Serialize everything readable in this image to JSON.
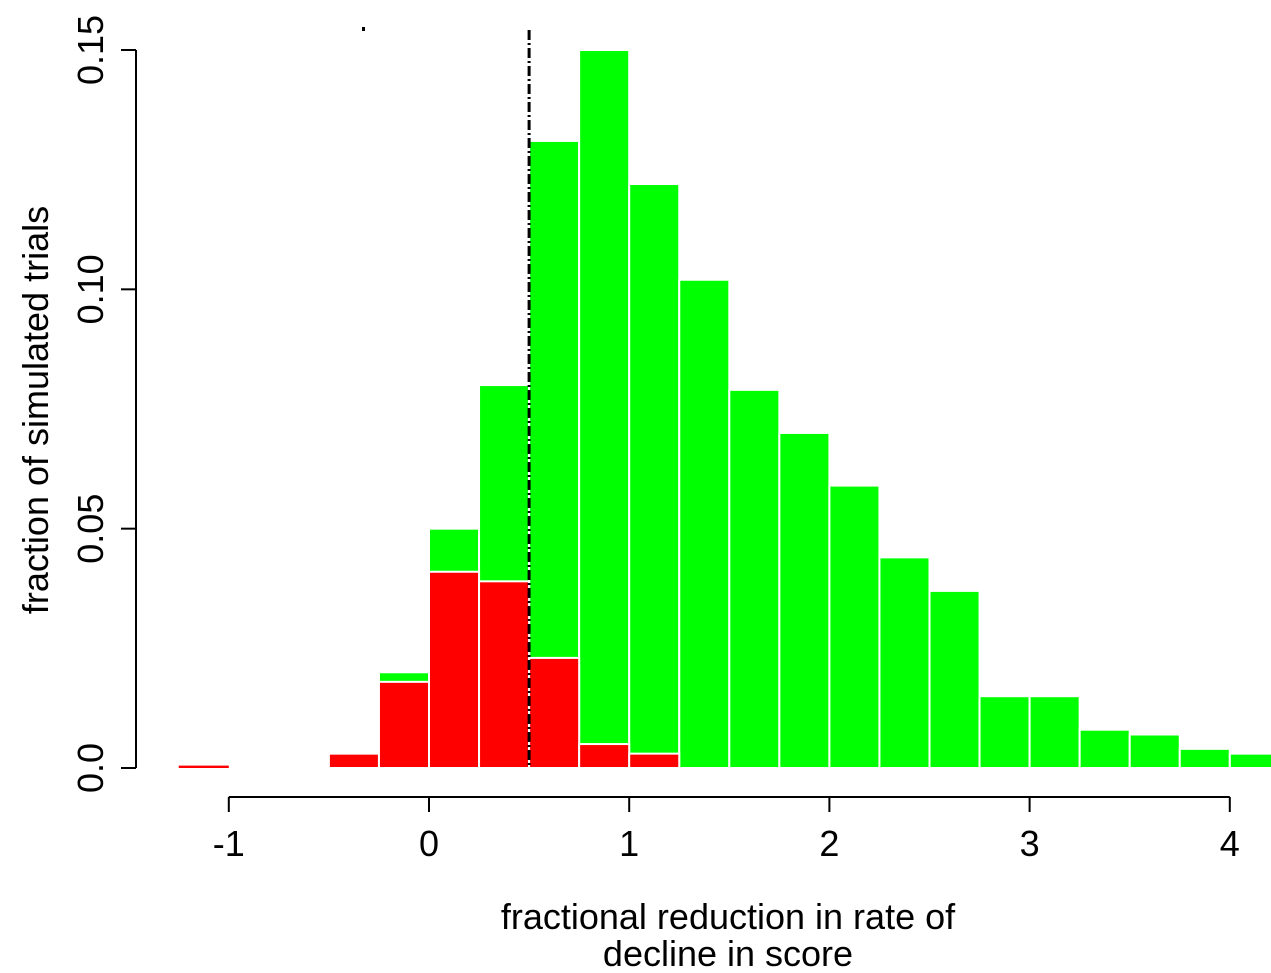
{
  "chart_data": {
    "type": "bar",
    "xlabel_lines": [
      "fractional reduction in rate of",
      "decline in score"
    ],
    "ylabel": "fraction of simulated trials",
    "xlim": [
      -1.25,
      4.2
    ],
    "ylim": [
      0,
      0.15
    ],
    "x_ticks": [
      -1,
      0,
      1,
      2,
      3,
      4
    ],
    "x_tick_labels": [
      "-1",
      "0",
      "1",
      "2",
      "3",
      "4"
    ],
    "y_ticks": [
      0,
      0.05,
      0.1,
      0.15
    ],
    "y_tick_labels": [
      "0.0",
      "0.05",
      "0.10",
      "0.15"
    ],
    "bin_width": 0.25,
    "bins_start": [
      -1.25,
      -0.5,
      -0.25,
      0.0,
      0.25,
      0.5,
      0.75,
      1.0,
      1.25,
      1.5,
      1.75,
      2.0,
      2.25,
      2.5,
      2.75,
      3.0,
      3.25,
      3.5,
      3.75,
      4.0
    ],
    "series": [
      {
        "color": "#ff0000",
        "values": [
          0.0005,
          0.003,
          0.018,
          0.041,
          0.039,
          0.023,
          0.005,
          0.003,
          0,
          0,
          0,
          0,
          0,
          0,
          0,
          0,
          0,
          0,
          0,
          0
        ]
      },
      {
        "color": "#00ff00",
        "values": [
          0,
          0,
          0.02,
          0.05,
          0.08,
          0.131,
          0.15,
          0.122,
          0.102,
          0.079,
          0.07,
          0.059,
          0.044,
          0.037,
          0.015,
          0.015,
          0.008,
          0.007,
          0.004,
          0.003
        ]
      }
    ],
    "reference_line_x": 0.5
  }
}
